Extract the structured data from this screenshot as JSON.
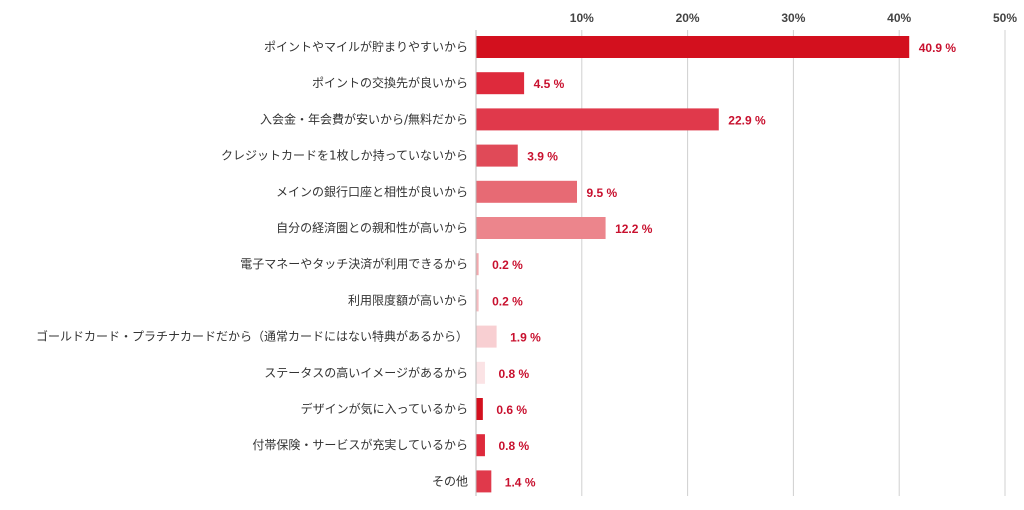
{
  "chart_data": {
    "type": "bar",
    "orientation": "horizontal",
    "categories": [
      "ポイントやマイルが貯まりやすいから",
      "ポイントの交換先が良いから",
      "入会金・年会費が安いから/無料だから",
      "クレジットカードを1枚しか持っていないから",
      "メインの銀行口座と相性が良いから",
      "自分の経済圏との親和性が高いから",
      "電子マネーやタッチ決済が利用できるから",
      "利用限度額が高いから",
      "ゴールドカード・プラチナカードだから（通常カードにはない特典があるから）",
      "ステータスの高いイメージがあるから",
      "デザインが気に入っているから",
      "付帯保険・サービスが充実しているから",
      "その他"
    ],
    "values": [
      40.9,
      4.5,
      22.9,
      3.9,
      9.5,
      12.2,
      0.2,
      0.2,
      1.9,
      0.8,
      0.6,
      0.8,
      1.4
    ],
    "value_labels": [
      "40.9 %",
      "4.5 %",
      "22.9 %",
      "3.9 %",
      "9.5 %",
      "12.2 %",
      "0.2 %",
      "0.2 %",
      "1.9 %",
      "0.8 %",
      "0.6 %",
      "0.8 %",
      "1.4 %"
    ],
    "bar_colors": [
      "#d3101e",
      "#de2a3c",
      "#e0394b",
      "#e04a58",
      "#e76a74",
      "#ec858c",
      "#f2a8ad",
      "#f5bcc0",
      "#f8cfd2",
      "#fbe3e5",
      "#d3101e",
      "#de2a3c",
      "#e0394b"
    ],
    "xticks": [
      "10%",
      "20%",
      "30%",
      "40%",
      "50%"
    ],
    "xtick_values": [
      10,
      20,
      30,
      40,
      50
    ],
    "xlim": [
      0,
      50
    ],
    "xaxis_position": "top",
    "grid": true,
    "title": "",
    "xlabel": "",
    "ylabel": ""
  }
}
